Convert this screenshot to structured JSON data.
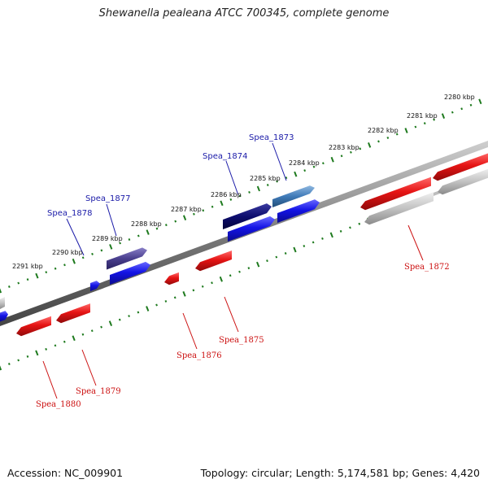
{
  "title": "Shewanella pealeana ATCC 700345, complete genome",
  "footer": {
    "accession": "Accession: NC_009901",
    "summary": "Topology: circular; Length: 5,174,581 bp; Genes: 4,420"
  },
  "ruler_labels": [
    "2280 kbp",
    "2281 kbp",
    "2282 kbp",
    "2283 kbp",
    "2284 kbp",
    "2285 kbp",
    "2286 kbp",
    "2287 kbp",
    "2288 kbp",
    "2289 kbp",
    "2290 kbp",
    "2291 kbp"
  ],
  "gene_labels_top": [
    "Spea_1873",
    "Spea_1874",
    "Spea_1877",
    "Spea_1878"
  ],
  "gene_labels_bottom": [
    "Spea_1872",
    "Spea_1875",
    "Spea_1876",
    "Spea_1879",
    "Spea_1880"
  ],
  "colors": {
    "forward_gene": "#1414e6",
    "reverse_gene": "#e61414",
    "backbone": "#808080",
    "ruler": "#1e7a1e",
    "pseudo_gene": "#c8c8c8",
    "label_top": "#1a1aa8",
    "label_bottom": "#cc1111"
  }
}
